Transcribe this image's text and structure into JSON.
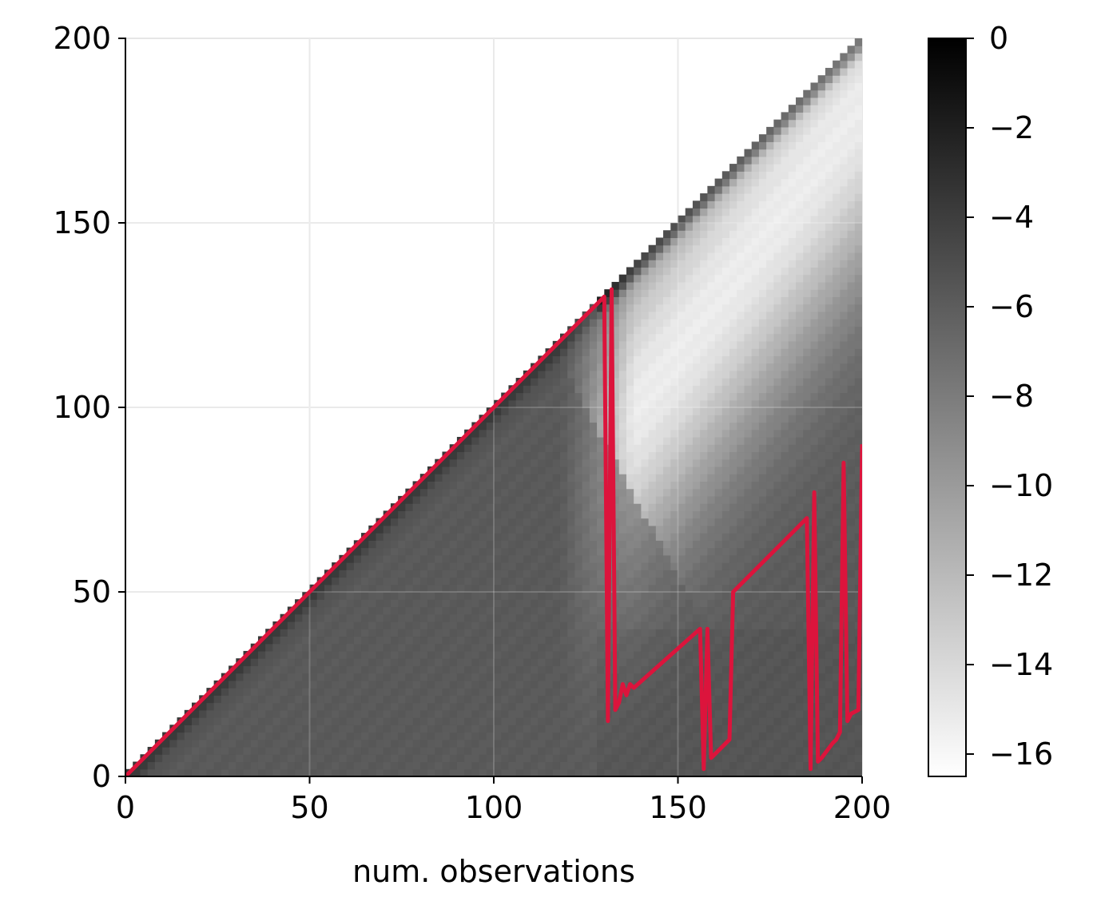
{
  "chart_data": {
    "type": "heatmap",
    "title": "",
    "xlabel": "num. observations",
    "ylabel": "",
    "xlim": [
      0,
      200
    ],
    "ylim": [
      0,
      200
    ],
    "x_ticks": [
      0,
      50,
      100,
      150,
      200
    ],
    "y_ticks": [
      0,
      50,
      100,
      150,
      200
    ],
    "x_tick_labels": [
      "0",
      "50",
      "100",
      "150",
      "200"
    ],
    "y_tick_labels": [
      "0",
      "50",
      "100",
      "150",
      "200"
    ],
    "grid": true,
    "heatmap": {
      "region": "lower triangle (y <= x)",
      "colormap": "gray_r (white = low, black = high)",
      "description_values": "log-probability over (observations, run length)"
    },
    "colorbar": {
      "range": [
        -16.5,
        0
      ],
      "ticks": [
        0,
        -2,
        -4,
        -6,
        -8,
        -10,
        -12,
        -14,
        -16
      ],
      "tick_labels": [
        "0",
        "−2",
        "−4",
        "−6",
        "−8",
        "−10",
        "−12",
        "−14",
        "−16"
      ]
    },
    "series": [
      {
        "color": "#DC143C",
        "points": [
          [
            0,
            0
          ],
          [
            130,
            130
          ],
          [
            131,
            15
          ],
          [
            132,
            132
          ],
          [
            133,
            18
          ],
          [
            134,
            20
          ],
          [
            135,
            25
          ],
          [
            136,
            22
          ],
          [
            137,
            25
          ],
          [
            138,
            24
          ],
          [
            156,
            40
          ],
          [
            157,
            2
          ],
          [
            158,
            40
          ],
          [
            159,
            5
          ],
          [
            160,
            6
          ],
          [
            164,
            10
          ],
          [
            165,
            50
          ],
          [
            185,
            70
          ],
          [
            186,
            2
          ],
          [
            187,
            77
          ],
          [
            188,
            4
          ],
          [
            189,
            5
          ],
          [
            192,
            9
          ],
          [
            193,
            10
          ],
          [
            194,
            12
          ],
          [
            195,
            85
          ],
          [
            196,
            15
          ],
          [
            197,
            17
          ],
          [
            199,
            18
          ],
          [
            200,
            90
          ]
        ]
      }
    ]
  }
}
